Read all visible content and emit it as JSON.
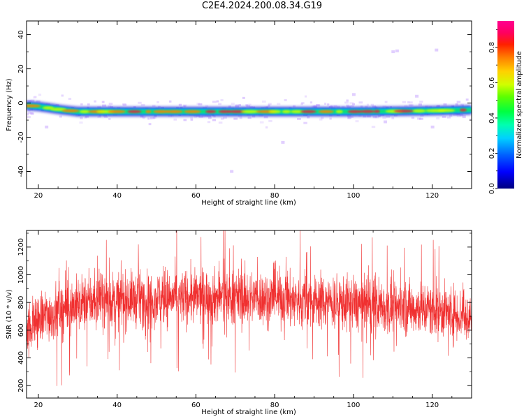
{
  "figure": {
    "title": "C2E4.2024.200.08.34.G19"
  },
  "colors": {
    "snr_line": "#f03030",
    "axis": "#000000"
  },
  "chart_data": [
    {
      "type": "heatmap",
      "title": "",
      "xlabel": "Height of straight line (km)",
      "ylabel": "Frequency (Hz)",
      "xlim": [
        17,
        130
      ],
      "ylim": [
        -50,
        48
      ],
      "xticks": [
        20,
        40,
        60,
        80,
        100,
        120
      ],
      "yticks": [
        -40,
        -20,
        0,
        20,
        40
      ],
      "ridge": {
        "x": [
          17,
          20,
          23,
          26,
          30,
          40,
          60,
          80,
          100,
          110,
          120,
          130
        ],
        "y": [
          -1.5,
          -2,
          -3,
          -4,
          -5,
          -5,
          -5,
          -5,
          -5,
          -4.8,
          -4.5,
          -4
        ]
      },
      "colorbar": {
        "label": "Normalized spectral amplitude",
        "ticks": [
          0.0,
          0.2,
          0.4,
          0.6,
          0.8
        ],
        "range": [
          0,
          0.95
        ],
        "colormap": "gist_ncar-like"
      }
    },
    {
      "type": "line",
      "title": "",
      "xlabel": "Height of straight line (km)",
      "ylabel": "SNR (10 * v/v)",
      "xlim": [
        17,
        130
      ],
      "ylim": [
        110,
        1320
      ],
      "xticks": [
        20,
        40,
        60,
        80,
        100,
        120
      ],
      "yticks": [
        200,
        400,
        600,
        800,
        1000,
        1200
      ],
      "series": [
        {
          "name": "",
          "envelope_x": [
            17,
            20,
            25,
            30,
            40,
            50,
            60,
            70,
            80,
            90,
            100,
            110,
            120,
            130
          ],
          "envelope_mean": [
            620,
            680,
            740,
            790,
            820,
            830,
            840,
            840,
            830,
            810,
            790,
            770,
            750,
            700
          ],
          "spread": 130
        }
      ]
    }
  ]
}
